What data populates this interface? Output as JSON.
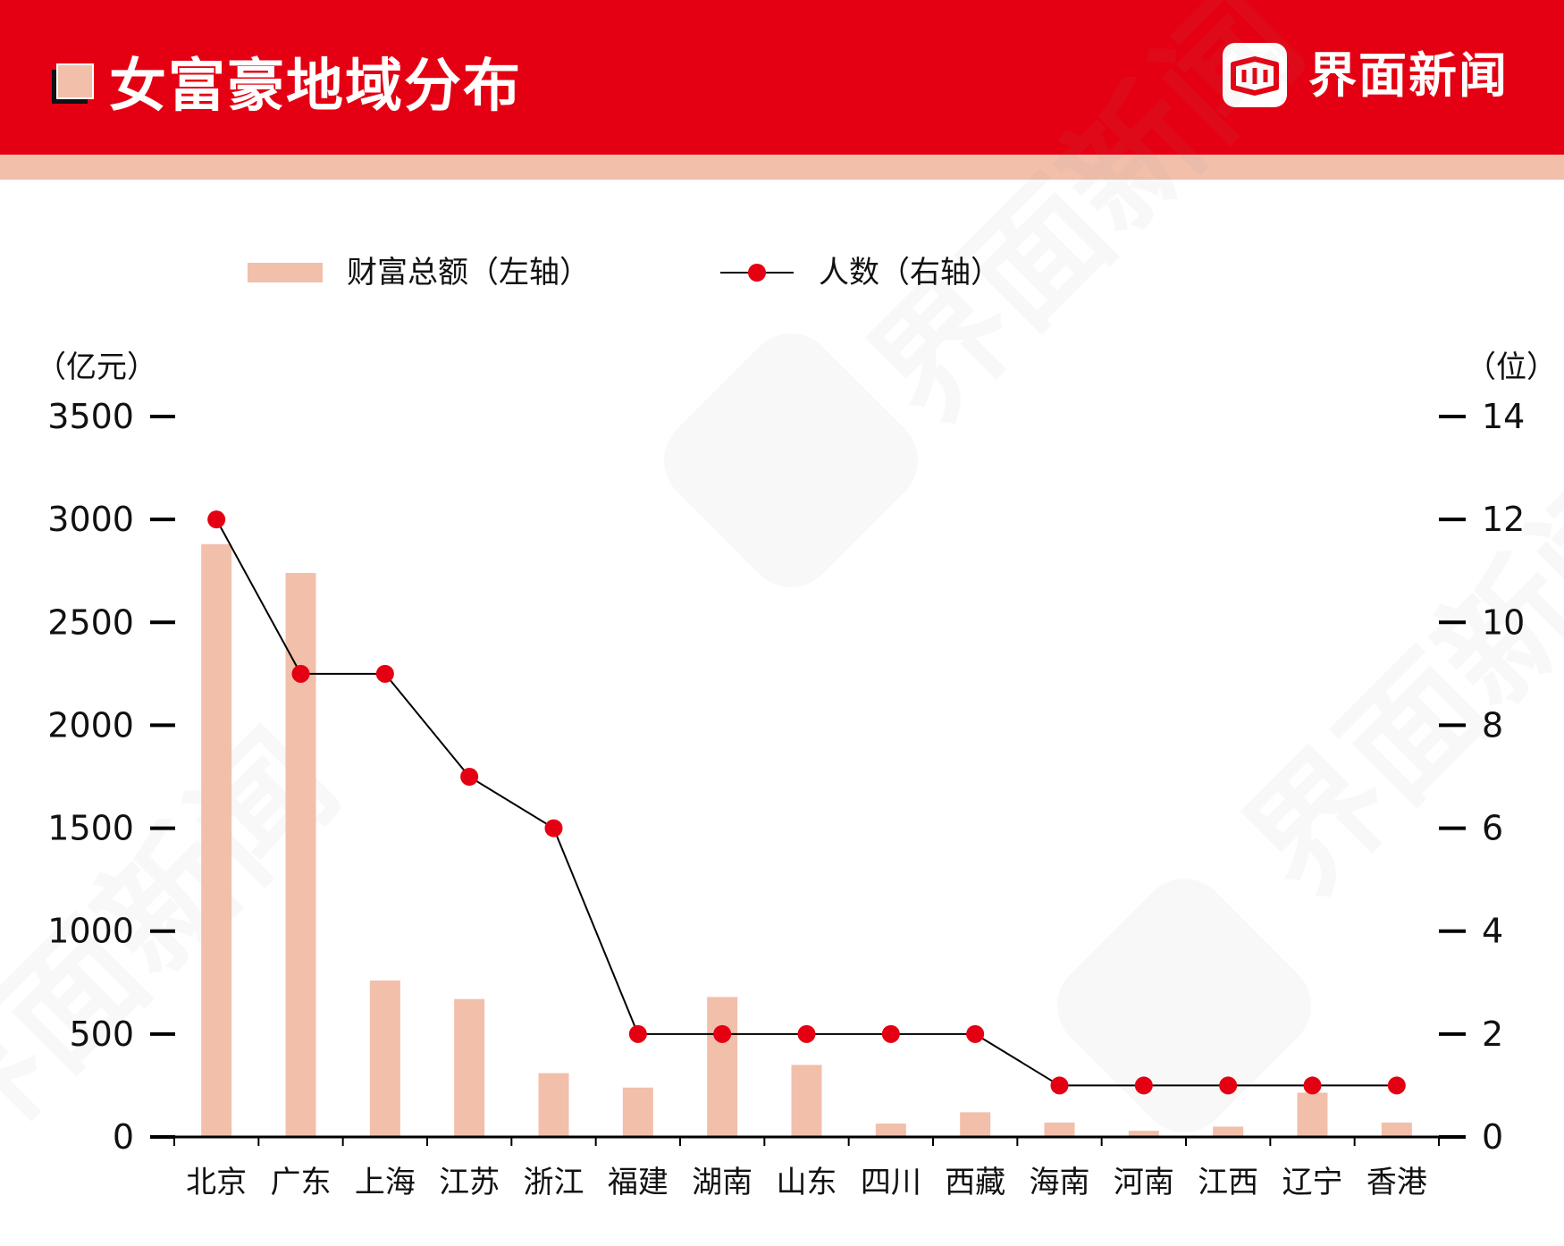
{
  "header": {
    "title": "女富豪地域分布",
    "brand": "界面新闻",
    "colors": {
      "header_bg": "#e40012",
      "stripe": "#f2bfab"
    }
  },
  "watermark": {
    "text": "界面新闻"
  },
  "chart_data": {
    "type": "bar",
    "categories": [
      "北京",
      "广东",
      "上海",
      "江苏",
      "浙江",
      "福建",
      "湖南",
      "山东",
      "四川",
      "西藏",
      "海南",
      "河南",
      "江西",
      "辽宁",
      "香港"
    ],
    "series": [
      {
        "name": "财富总额（左轴）",
        "type": "bar",
        "axis": "left",
        "color": "#f2bfab",
        "values": [
          2880,
          2740,
          760,
          670,
          310,
          240,
          680,
          350,
          65,
          120,
          70,
          30,
          50,
          215,
          70
        ]
      },
      {
        "name": "人数（右轴）",
        "type": "line",
        "axis": "right",
        "color": "#e40012",
        "line_color": "#000000",
        "values": [
          12,
          9,
          9,
          7,
          6,
          2,
          2,
          2,
          2,
          2,
          1,
          1,
          1,
          1,
          1
        ]
      }
    ],
    "left_axis": {
      "unit_label": "（亿元）",
      "ylim": [
        0,
        3500
      ],
      "ticks": [
        "0",
        "500",
        "1000",
        "1500",
        "2000",
        "2500",
        "3000",
        "3500"
      ]
    },
    "right_axis": {
      "unit_label": "（位）",
      "ylim": [
        0,
        14
      ],
      "ticks": [
        "0",
        "2",
        "4",
        "6",
        "8",
        "10",
        "12",
        "14"
      ]
    },
    "legend_position": "top",
    "grid": false
  }
}
